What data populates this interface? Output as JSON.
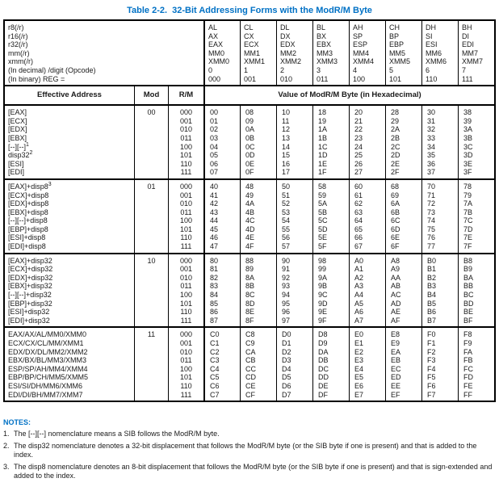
{
  "title": "Table 2-2.  32-Bit Addressing Forms with the ModR/M Byte",
  "colors": {
    "title_blue": "#0071c5",
    "text": "#1a1a1a",
    "border": "#000000"
  },
  "register_header": {
    "row_labels": [
      "r8(/r)",
      "r16(/r)",
      "r32(/r)",
      "mm(/r)",
      "xmm(/r)",
      "(In decimal) /digit (Opcode)",
      "(In binary) REG ="
    ],
    "columns": [
      [
        "AL",
        "AX",
        "EAX",
        "MM0",
        "XMM0",
        "0",
        "000"
      ],
      [
        "CL",
        "CX",
        "ECX",
        "MM1",
        "XMM1",
        "1",
        "001"
      ],
      [
        "DL",
        "DX",
        "EDX",
        "MM2",
        "XMM2",
        "2",
        "010"
      ],
      [
        "BL",
        "BX",
        "EBX",
        "MM3",
        "XMM3",
        "3",
        "011"
      ],
      [
        "AH",
        "SP",
        "ESP",
        "MM4",
        "XMM4",
        "4",
        "100"
      ],
      [
        "CH",
        "BP",
        "EBP",
        "MM5",
        "XMM5",
        "5",
        "101"
      ],
      [
        "DH",
        "SI",
        "ESI",
        "MM6",
        "XMM6",
        "6",
        "110"
      ],
      [
        "BH",
        "DI",
        "EDI",
        "MM7",
        "XMM7",
        "7",
        "111"
      ]
    ]
  },
  "column_headers": {
    "effective_address": "Effective Address",
    "mod": "Mod",
    "rm": "R/M",
    "value": "Value of ModR/M Byte (in Hexadecimal)"
  },
  "groups": [
    {
      "mod": "00",
      "rows": [
        {
          "ea": "[EAX]",
          "sup": "",
          "rm": "000",
          "hex": [
            "00",
            "08",
            "10",
            "18",
            "20",
            "28",
            "30",
            "38"
          ]
        },
        {
          "ea": "[ECX]",
          "sup": "",
          "rm": "001",
          "hex": [
            "01",
            "09",
            "11",
            "19",
            "21",
            "29",
            "31",
            "39"
          ]
        },
        {
          "ea": "[EDX]",
          "sup": "",
          "rm": "010",
          "hex": [
            "02",
            "0A",
            "12",
            "1A",
            "22",
            "2A",
            "32",
            "3A"
          ]
        },
        {
          "ea": "[EBX]",
          "sup": "",
          "rm": "011",
          "hex": [
            "03",
            "0B",
            "13",
            "1B",
            "23",
            "2B",
            "33",
            "3B"
          ]
        },
        {
          "ea": "[--][--]",
          "sup": "1",
          "rm": "100",
          "hex": [
            "04",
            "0C",
            "14",
            "1C",
            "24",
            "2C",
            "34",
            "3C"
          ]
        },
        {
          "ea": "disp32",
          "sup": "2",
          "rm": "101",
          "hex": [
            "05",
            "0D",
            "15",
            "1D",
            "25",
            "2D",
            "35",
            "3D"
          ]
        },
        {
          "ea": "[ESI]",
          "sup": "",
          "rm": "110",
          "hex": [
            "06",
            "0E",
            "16",
            "1E",
            "26",
            "2E",
            "36",
            "3E"
          ]
        },
        {
          "ea": "[EDI]",
          "sup": "",
          "rm": "111",
          "hex": [
            "07",
            "0F",
            "17",
            "1F",
            "27",
            "2F",
            "37",
            "3F"
          ]
        }
      ]
    },
    {
      "mod": "01",
      "rows": [
        {
          "ea": "[EAX]+disp8",
          "sup": "3",
          "rm": "000",
          "hex": [
            "40",
            "48",
            "50",
            "58",
            "60",
            "68",
            "70",
            "78"
          ]
        },
        {
          "ea": "[ECX]+disp8",
          "sup": "",
          "rm": "001",
          "hex": [
            "41",
            "49",
            "51",
            "59",
            "61",
            "69",
            "71",
            "79"
          ]
        },
        {
          "ea": "[EDX]+disp8",
          "sup": "",
          "rm": "010",
          "hex": [
            "42",
            "4A",
            "52",
            "5A",
            "62",
            "6A",
            "72",
            "7A"
          ]
        },
        {
          "ea": "[EBX]+disp8",
          "sup": "",
          "rm": "011",
          "hex": [
            "43",
            "4B",
            "53",
            "5B",
            "63",
            "6B",
            "73",
            "7B"
          ]
        },
        {
          "ea": "[--][--]+disp8",
          "sup": "",
          "rm": "100",
          "hex": [
            "44",
            "4C",
            "54",
            "5C",
            "64",
            "6C",
            "74",
            "7C"
          ]
        },
        {
          "ea": "[EBP]+disp8",
          "sup": "",
          "rm": "101",
          "hex": [
            "45",
            "4D",
            "55",
            "5D",
            "65",
            "6D",
            "75",
            "7D"
          ]
        },
        {
          "ea": "[ESI]+disp8",
          "sup": "",
          "rm": "110",
          "hex": [
            "46",
            "4E",
            "56",
            "5E",
            "66",
            "6E",
            "76",
            "7E"
          ]
        },
        {
          "ea": "[EDI]+disp8",
          "sup": "",
          "rm": "111",
          "hex": [
            "47",
            "4F",
            "57",
            "5F",
            "67",
            "6F",
            "77",
            "7F"
          ]
        }
      ]
    },
    {
      "mod": "10",
      "rows": [
        {
          "ea": "[EAX]+disp32",
          "sup": "",
          "rm": "000",
          "hex": [
            "80",
            "88",
            "90",
            "98",
            "A0",
            "A8",
            "B0",
            "B8"
          ]
        },
        {
          "ea": "[ECX]+disp32",
          "sup": "",
          "rm": "001",
          "hex": [
            "81",
            "89",
            "91",
            "99",
            "A1",
            "A9",
            "B1",
            "B9"
          ]
        },
        {
          "ea": "[EDX]+disp32",
          "sup": "",
          "rm": "010",
          "hex": [
            "82",
            "8A",
            "92",
            "9A",
            "A2",
            "AA",
            "B2",
            "BA"
          ]
        },
        {
          "ea": "[EBX]+disp32",
          "sup": "",
          "rm": "011",
          "hex": [
            "83",
            "8B",
            "93",
            "9B",
            "A3",
            "AB",
            "B3",
            "BB"
          ]
        },
        {
          "ea": "[--][--]+disp32",
          "sup": "",
          "rm": "100",
          "hex": [
            "84",
            "8C",
            "94",
            "9C",
            "A4",
            "AC",
            "B4",
            "BC"
          ]
        },
        {
          "ea": "[EBP]+disp32",
          "sup": "",
          "rm": "101",
          "hex": [
            "85",
            "8D",
            "95",
            "9D",
            "A5",
            "AD",
            "B5",
            "BD"
          ]
        },
        {
          "ea": "[ESI]+disp32",
          "sup": "",
          "rm": "110",
          "hex": [
            "86",
            "8E",
            "96",
            "9E",
            "A6",
            "AE",
            "B6",
            "BE"
          ]
        },
        {
          "ea": "[EDI]+disp32",
          "sup": "",
          "rm": "111",
          "hex": [
            "87",
            "8F",
            "97",
            "9F",
            "A7",
            "AF",
            "B7",
            "BF"
          ]
        }
      ]
    },
    {
      "mod": "11",
      "rows": [
        {
          "ea": "EAX/AX/AL/MM0/XMM0",
          "sup": "",
          "rm": "000",
          "hex": [
            "C0",
            "C8",
            "D0",
            "D8",
            "E0",
            "E8",
            "F0",
            "F8"
          ]
        },
        {
          "ea": "ECX/CX/CL/MM/XMM1",
          "sup": "",
          "rm": "001",
          "hex": [
            "C1",
            "C9",
            "D1",
            "D9",
            "E1",
            "E9",
            "F1",
            "F9"
          ]
        },
        {
          "ea": "EDX/DX/DL/MM2/XMM2",
          "sup": "",
          "rm": "010",
          "hex": [
            "C2",
            "CA",
            "D2",
            "DA",
            "E2",
            "EA",
            "F2",
            "FA"
          ]
        },
        {
          "ea": "EBX/BX/BL/MM3/XMM3",
          "sup": "",
          "rm": "011",
          "hex": [
            "C3",
            "CB",
            "D3",
            "DB",
            "E3",
            "EB",
            "F3",
            "FB"
          ]
        },
        {
          "ea": "ESP/SP/AH/MM4/XMM4",
          "sup": "",
          "rm": "100",
          "hex": [
            "C4",
            "CC",
            "D4",
            "DC",
            "E4",
            "EC",
            "F4",
            "FC"
          ]
        },
        {
          "ea": "EBP/BP/CH/MM5/XMM5",
          "sup": "",
          "rm": "101",
          "hex": [
            "C5",
            "CD",
            "D5",
            "DD",
            "E5",
            "ED",
            "F5",
            "FD"
          ]
        },
        {
          "ea": "ESI/SI/DH/MM6/XMM6",
          "sup": "",
          "rm": "110",
          "hex": [
            "C6",
            "CE",
            "D6",
            "DE",
            "E6",
            "EE",
            "F6",
            "FE"
          ]
        },
        {
          "ea": "EDI/DI/BH/MM7/XMM7",
          "sup": "",
          "rm": "111",
          "hex": [
            "C7",
            "CF",
            "D7",
            "DF",
            "E7",
            "EF",
            "F7",
            "FF"
          ]
        }
      ]
    }
  ],
  "notes": {
    "label": "NOTES:",
    "items": [
      {
        "num": "1.",
        "text": "The [--][--] nomenclature means a SIB follows the ModR/M byte."
      },
      {
        "num": "2.",
        "text": "The disp32 nomenclature denotes a 32-bit displacement that follows the ModR/M byte (or the SIB byte if one is present) and that is added to the index."
      },
      {
        "num": "3.",
        "text": "The disp8 nomenclature denotes an 8-bit displacement that follows the ModR/M byte (or the SIB byte if one is present) and that is sign-extended and added to the index."
      }
    ]
  }
}
